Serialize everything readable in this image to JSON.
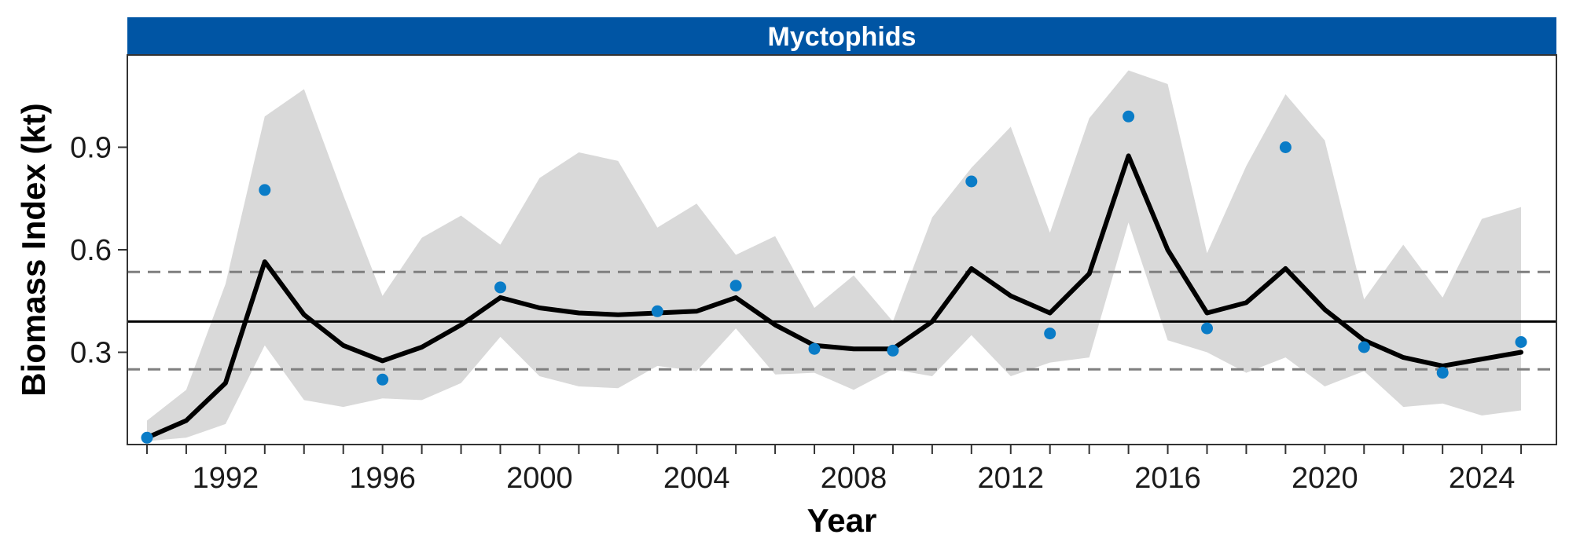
{
  "chart_data": {
    "type": "line",
    "panel_title": "Myctophids",
    "xlabel": "Year",
    "ylabel": "Biomass Index (kt)",
    "xlim": [
      1989.5,
      1990.0
    ],
    "ylim": [
      0.03,
      1.17
    ],
    "x_ticks": [
      1992,
      1996,
      2000,
      2004,
      2008,
      2012,
      2016,
      2020,
      2024
    ],
    "y_ticks": [
      0.3,
      0.6,
      0.9
    ],
    "reference_lines": {
      "mean": 0.39,
      "upper": 0.535,
      "lower": 0.25
    },
    "fitted": {
      "x": [
        1990,
        1991,
        1992,
        1993,
        1994,
        1995,
        1996,
        1997,
        1998,
        1999,
        2000,
        2001,
        2002,
        2003,
        2004,
        2005,
        2006,
        2007,
        2008,
        2009,
        2010,
        2011,
        2012,
        2013,
        2014,
        2015,
        2016,
        2017,
        2018,
        2019,
        2020,
        2021,
        2022,
        2023,
        2024,
        2025
      ],
      "y": [
        0.05,
        0.1,
        0.21,
        0.565,
        0.41,
        0.32,
        0.275,
        0.315,
        0.38,
        0.46,
        0.43,
        0.415,
        0.41,
        0.415,
        0.42,
        0.46,
        0.38,
        0.32,
        0.31,
        0.31,
        0.39,
        0.545,
        0.465,
        0.415,
        0.53,
        0.875,
        0.6,
        0.415,
        0.445,
        0.545,
        0.425,
        0.335,
        0.285,
        0.26,
        0.28,
        0.3
      ]
    },
    "ci_upper": [
      0.1,
      0.19,
      0.5,
      0.99,
      1.07,
      0.76,
      0.465,
      0.635,
      0.7,
      0.615,
      0.81,
      0.885,
      0.86,
      0.665,
      0.735,
      0.585,
      0.64,
      0.43,
      0.525,
      0.39,
      0.695,
      0.84,
      0.96,
      0.65,
      0.985,
      1.125,
      1.085,
      0.59,
      0.845,
      1.055,
      0.92,
      0.455,
      0.615,
      0.46,
      0.69,
      0.725
    ],
    "ci_lower": [
      0.04,
      0.05,
      0.09,
      0.32,
      0.16,
      0.14,
      0.165,
      0.16,
      0.21,
      0.345,
      0.23,
      0.2,
      0.195,
      0.26,
      0.245,
      0.37,
      0.235,
      0.24,
      0.19,
      0.25,
      0.23,
      0.35,
      0.23,
      0.27,
      0.285,
      0.68,
      0.335,
      0.3,
      0.24,
      0.285,
      0.2,
      0.245,
      0.14,
      0.15,
      0.115,
      0.13
    ],
    "observed": {
      "x": [
        1990,
        1993,
        1996,
        1999,
        2003,
        2005,
        2007,
        2009,
        2011,
        2013,
        2015,
        2017,
        2019,
        2021,
        2023,
        2025
      ],
      "y": [
        0.05,
        0.775,
        0.22,
        0.49,
        0.42,
        0.495,
        0.31,
        0.305,
        0.8,
        0.355,
        0.99,
        0.37,
        0.9,
        0.315,
        0.24,
        0.33
      ]
    },
    "colors": {
      "strip": "#0055A4",
      "ribbon": "#D9D9D9",
      "line": "#000000",
      "points": "#0A7CC7",
      "dashed": "#7F7F7F"
    }
  }
}
